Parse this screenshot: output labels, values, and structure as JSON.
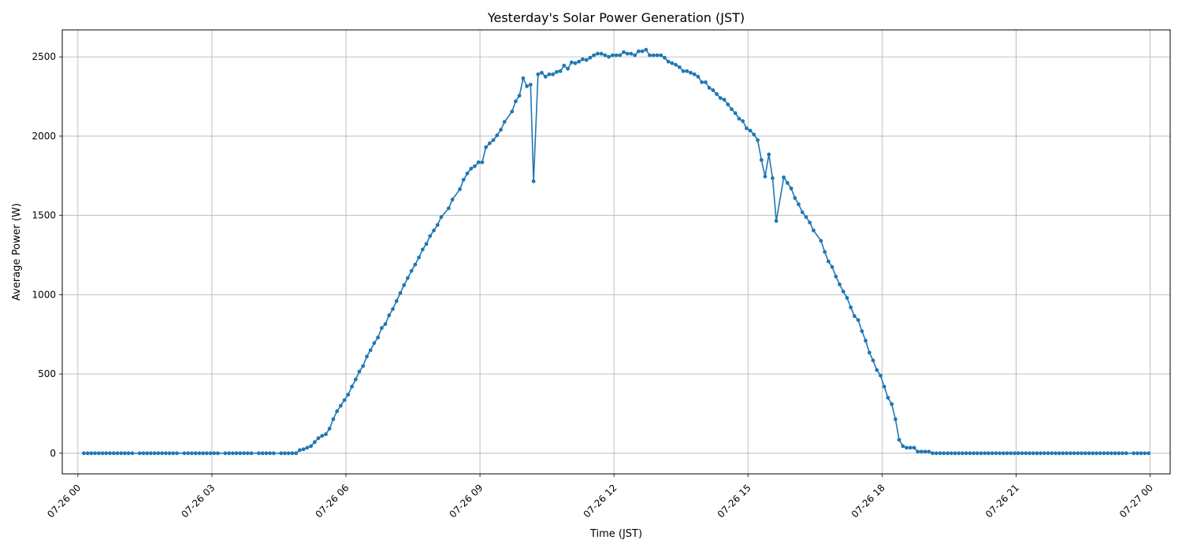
{
  "chart_data": {
    "type": "line",
    "title": "Yesterday's Solar Power Generation (JST)",
    "xlabel": "Time (JST)",
    "ylabel": "Average Power (W)",
    "xlim_hours": [
      -0.35,
      24.45
    ],
    "ylim": [
      -130,
      2670
    ],
    "grid": true,
    "x_ticks": [
      {
        "h": 0,
        "label": "07-26 00"
      },
      {
        "h": 3,
        "label": "07-26 03"
      },
      {
        "h": 6,
        "label": "07-26 06"
      },
      {
        "h": 9,
        "label": "07-26 09"
      },
      {
        "h": 12,
        "label": "07-26 12"
      },
      {
        "h": 15,
        "label": "07-26 15"
      },
      {
        "h": 18,
        "label": "07-26 18"
      },
      {
        "h": 21,
        "label": "07-26 21"
      },
      {
        "h": 24,
        "label": "07-27 00"
      }
    ],
    "y_ticks": [
      {
        "v": 0,
        "label": "0"
      },
      {
        "v": 500,
        "label": "500"
      },
      {
        "v": 1000,
        "label": "1000"
      },
      {
        "v": 1500,
        "label": "1500"
      },
      {
        "v": 2000,
        "label": "2000"
      },
      {
        "v": 2500,
        "label": "2500"
      }
    ],
    "series": [
      {
        "color": "#1f77b4",
        "points": [
          [
            0.133,
            0
          ],
          [
            0.217,
            0
          ],
          [
            0.3,
            0
          ],
          [
            0.383,
            0
          ],
          [
            0.467,
            0
          ],
          [
            0.55,
            0
          ],
          [
            0.633,
            0
          ],
          [
            0.717,
            0
          ],
          [
            0.8,
            0
          ],
          [
            0.883,
            0
          ],
          [
            0.967,
            0
          ],
          [
            1.05,
            0
          ],
          [
            1.133,
            0
          ],
          [
            1.217,
            0
          ],
          [
            1.383,
            0
          ],
          [
            1.467,
            0
          ],
          [
            1.55,
            0
          ],
          [
            1.633,
            0
          ],
          [
            1.717,
            0
          ],
          [
            1.8,
            0
          ],
          [
            1.883,
            0
          ],
          [
            1.967,
            0
          ],
          [
            2.05,
            0
          ],
          [
            2.133,
            0
          ],
          [
            2.217,
            0
          ],
          [
            2.383,
            0
          ],
          [
            2.467,
            0
          ],
          [
            2.55,
            0
          ],
          [
            2.633,
            0
          ],
          [
            2.717,
            0
          ],
          [
            2.8,
            0
          ],
          [
            2.883,
            0
          ],
          [
            2.967,
            0
          ],
          [
            3.05,
            0
          ],
          [
            3.133,
            0
          ],
          [
            3.3,
            0
          ],
          [
            3.383,
            0
          ],
          [
            3.467,
            0
          ],
          [
            3.55,
            0
          ],
          [
            3.633,
            0
          ],
          [
            3.717,
            0
          ],
          [
            3.8,
            0
          ],
          [
            3.883,
            0
          ],
          [
            4.05,
            0
          ],
          [
            4.133,
            0
          ],
          [
            4.217,
            0
          ],
          [
            4.3,
            0
          ],
          [
            4.383,
            0
          ],
          [
            4.55,
            0
          ],
          [
            4.633,
            0
          ],
          [
            4.717,
            0
          ],
          [
            4.8,
            0
          ],
          [
            4.883,
            0
          ],
          [
            4.967,
            20
          ],
          [
            5.05,
            25
          ],
          [
            5.133,
            35
          ],
          [
            5.217,
            45
          ],
          [
            5.3,
            70
          ],
          [
            5.383,
            95
          ],
          [
            5.467,
            110
          ],
          [
            5.55,
            120
          ],
          [
            5.633,
            155
          ],
          [
            5.717,
            215
          ],
          [
            5.8,
            265
          ],
          [
            5.883,
            300
          ],
          [
            5.967,
            335
          ],
          [
            6.05,
            370
          ],
          [
            6.133,
            420
          ],
          [
            6.217,
            465
          ],
          [
            6.3,
            515
          ],
          [
            6.383,
            550
          ],
          [
            6.467,
            610
          ],
          [
            6.55,
            650
          ],
          [
            6.633,
            695
          ],
          [
            6.717,
            730
          ],
          [
            6.8,
            790
          ],
          [
            6.883,
            815
          ],
          [
            6.967,
            870
          ],
          [
            7.05,
            910
          ],
          [
            7.133,
            960
          ],
          [
            7.217,
            1010
          ],
          [
            7.3,
            1060
          ],
          [
            7.383,
            1105
          ],
          [
            7.467,
            1150
          ],
          [
            7.55,
            1190
          ],
          [
            7.633,
            1235
          ],
          [
            7.717,
            1285
          ],
          [
            7.8,
            1320
          ],
          [
            7.883,
            1370
          ],
          [
            7.967,
            1405
          ],
          [
            8.05,
            1440
          ],
          [
            8.133,
            1490
          ],
          [
            8.3,
            1545
          ],
          [
            8.383,
            1600
          ],
          [
            8.55,
            1665
          ],
          [
            8.633,
            1725
          ],
          [
            8.717,
            1765
          ],
          [
            8.8,
            1795
          ],
          [
            8.883,
            1810
          ],
          [
            8.967,
            1835
          ],
          [
            9.05,
            1835
          ],
          [
            9.133,
            1930
          ],
          [
            9.217,
            1955
          ],
          [
            9.3,
            1975
          ],
          [
            9.383,
            2005
          ],
          [
            9.467,
            2040
          ],
          [
            9.55,
            2090
          ],
          [
            9.717,
            2155
          ],
          [
            9.8,
            2220
          ],
          [
            9.883,
            2255
          ],
          [
            9.967,
            2365
          ],
          [
            10.05,
            2315
          ],
          [
            10.133,
            2325
          ],
          [
            10.2,
            1715
          ],
          [
            10.3,
            2390
          ],
          [
            10.383,
            2400
          ],
          [
            10.467,
            2375
          ],
          [
            10.55,
            2390
          ],
          [
            10.633,
            2390
          ],
          [
            10.717,
            2405
          ],
          [
            10.8,
            2410
          ],
          [
            10.883,
            2445
          ],
          [
            10.967,
            2425
          ],
          [
            11.05,
            2465
          ],
          [
            11.133,
            2460
          ],
          [
            11.217,
            2470
          ],
          [
            11.3,
            2485
          ],
          [
            11.383,
            2480
          ],
          [
            11.467,
            2495
          ],
          [
            11.55,
            2510
          ],
          [
            11.633,
            2520
          ],
          [
            11.717,
            2520
          ],
          [
            11.8,
            2510
          ],
          [
            11.883,
            2500
          ],
          [
            11.967,
            2510
          ],
          [
            12.05,
            2510
          ],
          [
            12.133,
            2510
          ],
          [
            12.217,
            2530
          ],
          [
            12.3,
            2520
          ],
          [
            12.383,
            2520
          ],
          [
            12.467,
            2510
          ],
          [
            12.55,
            2535
          ],
          [
            12.633,
            2535
          ],
          [
            12.717,
            2545
          ],
          [
            12.8,
            2510
          ],
          [
            12.883,
            2510
          ],
          [
            12.967,
            2510
          ],
          [
            13.05,
            2510
          ],
          [
            13.133,
            2495
          ],
          [
            13.217,
            2470
          ],
          [
            13.3,
            2460
          ],
          [
            13.383,
            2450
          ],
          [
            13.467,
            2435
          ],
          [
            13.55,
            2410
          ],
          [
            13.633,
            2410
          ],
          [
            13.717,
            2400
          ],
          [
            13.8,
            2390
          ],
          [
            13.883,
            2375
          ],
          [
            13.967,
            2340
          ],
          [
            14.05,
            2340
          ],
          [
            14.133,
            2305
          ],
          [
            14.217,
            2290
          ],
          [
            14.3,
            2265
          ],
          [
            14.383,
            2240
          ],
          [
            14.467,
            2230
          ],
          [
            14.55,
            2200
          ],
          [
            14.633,
            2170
          ],
          [
            14.717,
            2145
          ],
          [
            14.8,
            2110
          ],
          [
            14.883,
            2095
          ],
          [
            14.967,
            2050
          ],
          [
            15.05,
            2035
          ],
          [
            15.133,
            2010
          ],
          [
            15.217,
            1975
          ],
          [
            15.3,
            1850
          ],
          [
            15.383,
            1745
          ],
          [
            15.467,
            1885
          ],
          [
            15.55,
            1735
          ],
          [
            15.633,
            1465
          ],
          [
            15.8,
            1740
          ],
          [
            15.883,
            1705
          ],
          [
            15.967,
            1670
          ],
          [
            16.05,
            1610
          ],
          [
            16.133,
            1570
          ],
          [
            16.217,
            1520
          ],
          [
            16.3,
            1490
          ],
          [
            16.383,
            1455
          ],
          [
            16.467,
            1405
          ],
          [
            16.633,
            1340
          ],
          [
            16.717,
            1270
          ],
          [
            16.8,
            1210
          ],
          [
            16.883,
            1175
          ],
          [
            16.967,
            1115
          ],
          [
            17.05,
            1065
          ],
          [
            17.133,
            1020
          ],
          [
            17.217,
            980
          ],
          [
            17.3,
            920
          ],
          [
            17.383,
            865
          ],
          [
            17.467,
            840
          ],
          [
            17.55,
            770
          ],
          [
            17.633,
            710
          ],
          [
            17.717,
            635
          ],
          [
            17.8,
            585
          ],
          [
            17.883,
            525
          ],
          [
            17.967,
            490
          ],
          [
            18.05,
            420
          ],
          [
            18.133,
            350
          ],
          [
            18.217,
            310
          ],
          [
            18.3,
            215
          ],
          [
            18.383,
            85
          ],
          [
            18.467,
            45
          ],
          [
            18.55,
            35
          ],
          [
            18.633,
            35
          ],
          [
            18.717,
            35
          ],
          [
            18.8,
            10
          ],
          [
            18.883,
            10
          ],
          [
            18.967,
            10
          ],
          [
            19.05,
            10
          ],
          [
            19.133,
            0
          ],
          [
            19.217,
            0
          ],
          [
            19.3,
            0
          ],
          [
            19.383,
            0
          ],
          [
            19.467,
            0
          ],
          [
            19.55,
            0
          ],
          [
            19.633,
            0
          ],
          [
            19.717,
            0
          ],
          [
            19.8,
            0
          ],
          [
            19.883,
            0
          ],
          [
            19.967,
            0
          ],
          [
            20.05,
            0
          ],
          [
            20.133,
            0
          ],
          [
            20.217,
            0
          ],
          [
            20.3,
            0
          ],
          [
            20.383,
            0
          ],
          [
            20.467,
            0
          ],
          [
            20.55,
            0
          ],
          [
            20.633,
            0
          ],
          [
            20.717,
            0
          ],
          [
            20.8,
            0
          ],
          [
            20.883,
            0
          ],
          [
            20.967,
            0
          ],
          [
            21.05,
            0
          ],
          [
            21.133,
            0
          ],
          [
            21.217,
            0
          ],
          [
            21.3,
            0
          ],
          [
            21.383,
            0
          ],
          [
            21.467,
            0
          ],
          [
            21.55,
            0
          ],
          [
            21.633,
            0
          ],
          [
            21.717,
            0
          ],
          [
            21.8,
            0
          ],
          [
            21.883,
            0
          ],
          [
            21.967,
            0
          ],
          [
            22.05,
            0
          ],
          [
            22.133,
            0
          ],
          [
            22.217,
            0
          ],
          [
            22.3,
            0
          ],
          [
            22.383,
            0
          ],
          [
            22.467,
            0
          ],
          [
            22.55,
            0
          ],
          [
            22.633,
            0
          ],
          [
            22.717,
            0
          ],
          [
            22.8,
            0
          ],
          [
            22.883,
            0
          ],
          [
            22.967,
            0
          ],
          [
            23.05,
            0
          ],
          [
            23.133,
            0
          ],
          [
            23.217,
            0
          ],
          [
            23.3,
            0
          ],
          [
            23.383,
            0
          ],
          [
            23.467,
            0
          ],
          [
            23.633,
            0
          ],
          [
            23.717,
            0
          ],
          [
            23.8,
            0
          ],
          [
            23.883,
            0
          ],
          [
            23.967,
            0
          ]
        ]
      }
    ]
  }
}
